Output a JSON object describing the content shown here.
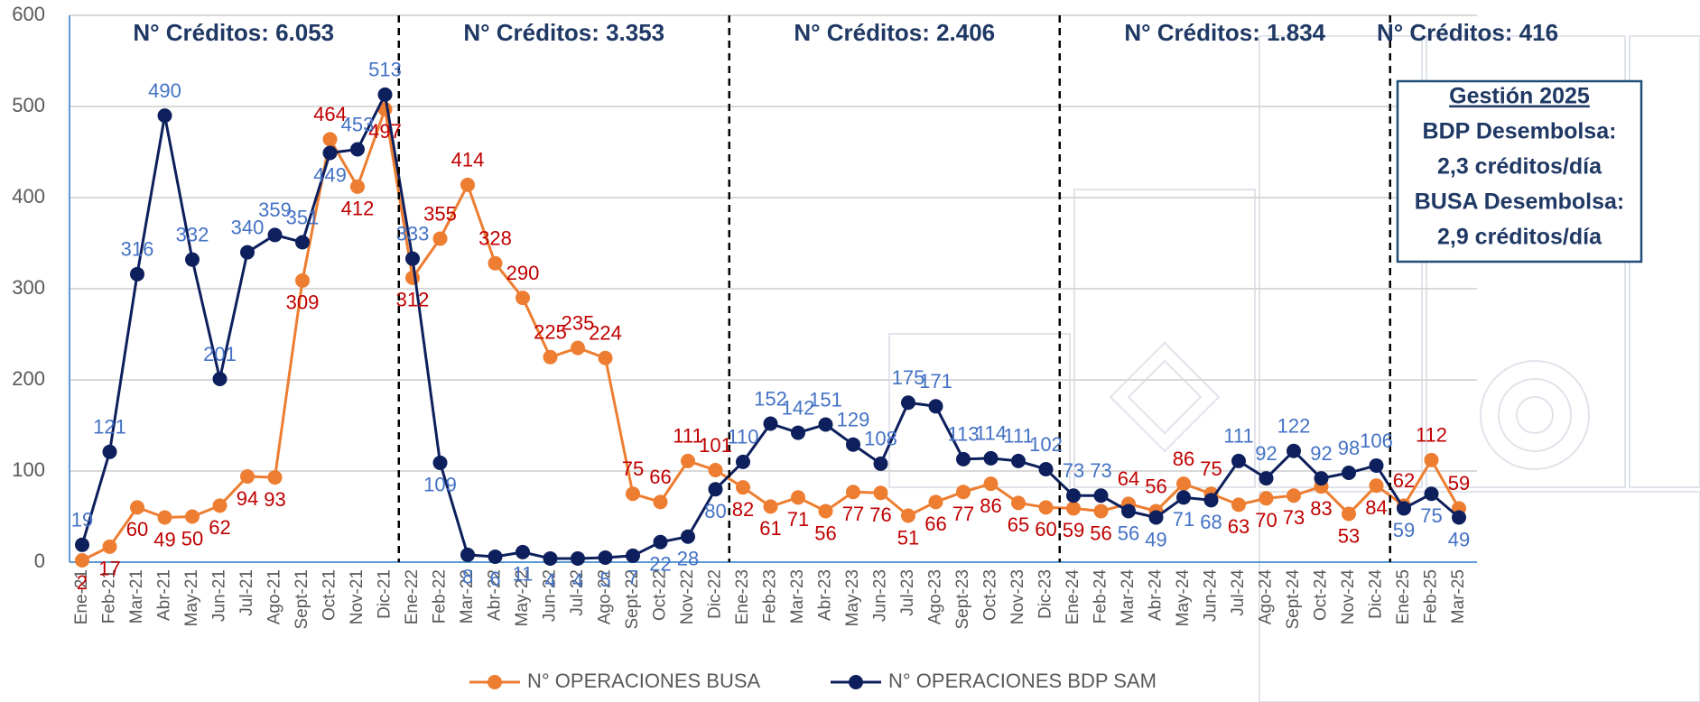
{
  "chart_data": {
    "type": "line",
    "categories": [
      "Ene-21",
      "Feb-21",
      "Mar-21",
      "Abr-21",
      "May-21",
      "Jun-21",
      "Jul-21",
      "Ago-21",
      "Sept-21",
      "Oct-21",
      "Nov-21",
      "Dic-21",
      "Ene-22",
      "Feb-22",
      "Mar-22",
      "Abr-22",
      "May-22",
      "Jun-22",
      "Jul-22",
      "Ago-22",
      "Sept-22",
      "Oct-22",
      "Nov-22",
      "Dic-22",
      "Ene-23",
      "Feb-23",
      "Mar-23",
      "Abr-23",
      "May-23",
      "Jun-23",
      "Jul-23",
      "Ago-23",
      "Sept-23",
      "Oct-23",
      "Nov-23",
      "Dic-23",
      "Ene-24",
      "Feb-24",
      "Mar-24",
      "Abr-24",
      "May-24",
      "Jun-24",
      "Jul-24",
      "Ago-24",
      "Sept-24",
      "Oct-24",
      "Nov-24",
      "Dic-24",
      "Ene-25",
      "Feb-25",
      "Mar-25"
    ],
    "series": [
      {
        "name": "N° OPERACIONES BUSA",
        "color": "#ed7d31",
        "label_color": "#c00000",
        "values": [
          2,
          17,
          60,
          49,
          50,
          62,
          94,
          93,
          309,
          464,
          412,
          497,
          312,
          355,
          414,
          328,
          290,
          225,
          235,
          224,
          75,
          66,
          111,
          101,
          82,
          61,
          71,
          56,
          77,
          76,
          51,
          66,
          77,
          86,
          65,
          60,
          59,
          56,
          64,
          56,
          86,
          75,
          63,
          70,
          73,
          83,
          53,
          84,
          62,
          112,
          59
        ]
      },
      {
        "name": "N° OPERACIONES BDP SAM",
        "color": "#0d1f5c",
        "label_color": "#4472c4",
        "values": [
          19,
          121,
          316,
          490,
          332,
          201,
          340,
          359,
          351,
          449,
          453,
          513,
          333,
          109,
          8,
          6,
          11,
          4,
          4,
          5,
          7,
          22,
          28,
          80,
          110,
          152,
          142,
          151,
          129,
          108,
          175,
          171,
          113,
          114,
          111,
          102,
          73,
          73,
          56,
          49,
          71,
          68,
          111,
          92,
          122,
          92,
          98,
          106,
          59,
          75,
          49
        ]
      }
    ],
    "ylim": [
      0,
      600
    ],
    "yticks": [
      0,
      100,
      200,
      300,
      400,
      500,
      600
    ],
    "grid": true,
    "legend": "bottom",
    "annotations": [
      "N° Créditos: 6.053",
      "N° Créditos: 3.353",
      "N° Créditos: 2.406",
      "N° Créditos: 1.834",
      "N° Créditos: 416"
    ],
    "note_box": [
      "Gestión 2025",
      "BDP Desembolsa:",
      "2,3 créditos/día",
      "BUSA Desembolsa:",
      "2,9 créditos/día"
    ]
  }
}
